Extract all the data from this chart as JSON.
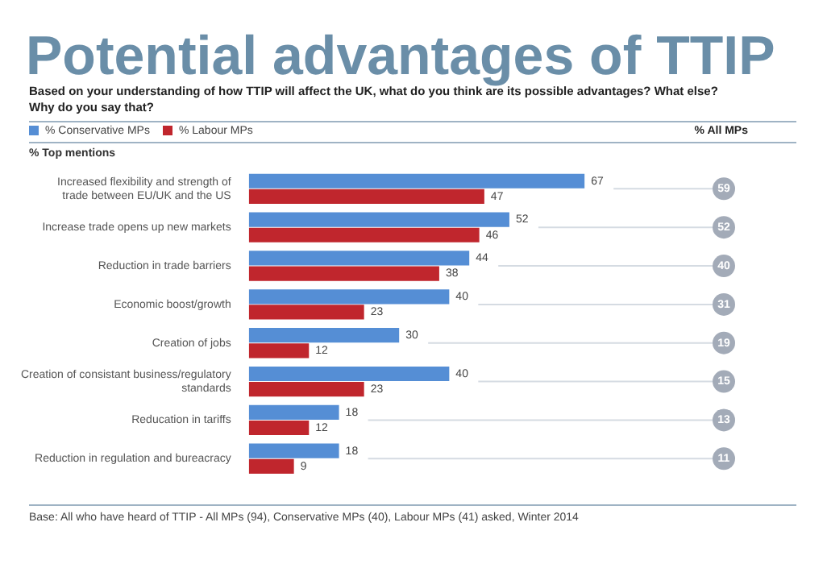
{
  "chart_data": {
    "type": "bar",
    "orientation": "horizontal",
    "title": "Potential advantages of TTIP",
    "subtitle": "Based on your understanding of how TTIP will affect the UK, what do you think are its possible advantages? What else? Why do you say that?",
    "ylabel": "% Top mentions",
    "categories": [
      "Increased flexibility and strength of trade between EU/UK and the US",
      "Increase trade opens up new markets",
      "Reduction in trade barriers",
      "Economic boost/growth",
      "Creation of jobs",
      "Creation of consistant business/regulatory standards",
      "Reducation in tariffs",
      "Reduction in regulation and bureacracy"
    ],
    "series": [
      {
        "name": "% Conservative MPs",
        "color": "#558ed5",
        "values": [
          67,
          52,
          44,
          40,
          30,
          40,
          18,
          18
        ]
      },
      {
        "name": "% Labour MPs",
        "color": "#c0262d",
        "values": [
          47,
          46,
          38,
          23,
          12,
          23,
          12,
          9
        ]
      }
    ],
    "data_labels": true,
    "legend": "top left",
    "grid": "y",
    "annotations": [
      "% All MPs",
      "59",
      "52",
      "40",
      "31",
      "19",
      "15",
      "13",
      "11",
      "Base: All who have heard of TTIP - All MPs (94), Conservative MPs (40), Labour MPs (41) asked, Winter 2014"
    ]
  }
}
